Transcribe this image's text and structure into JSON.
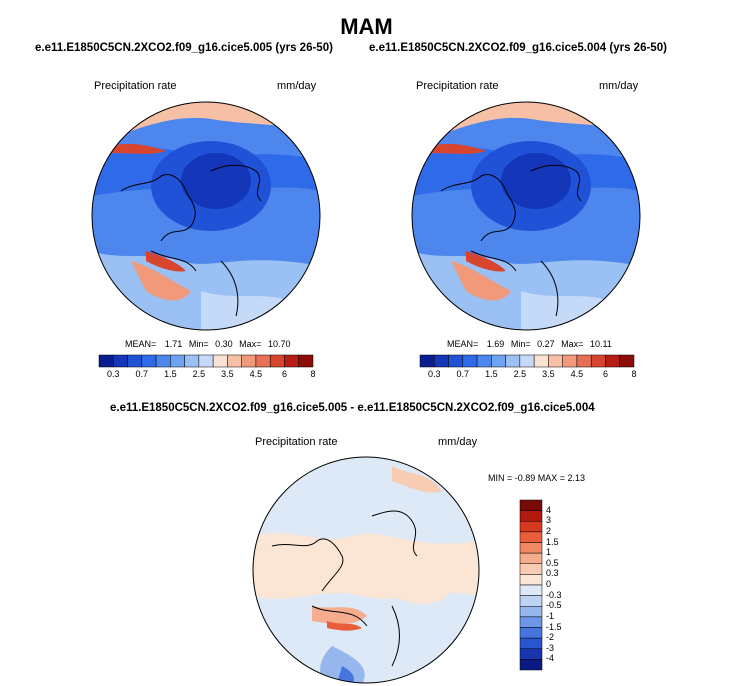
{
  "title": "MAM",
  "panels": [
    {
      "subtitle": "e.e11.E1850C5CN.2XCO2.f09_g16.cice5.005 (yrs 26-50)",
      "field_label": "Precipitation rate",
      "units": "mm/day",
      "stats": {
        "mean_label": "MEAN=",
        "mean": "1.71",
        "min_label": "Min=",
        "min": "0.30",
        "max_label": "Max=",
        "max": "10.70"
      }
    },
    {
      "subtitle": "e.e11.E1850C5CN.2XCO2.f09_g16.cice5.004 (yrs 26-50)",
      "field_label": "Precipitation rate",
      "units": "mm/day",
      "stats": {
        "mean_label": "MEAN=",
        "mean": "1.69",
        "min_label": "Min=",
        "min": "0.27",
        "max_label": "Max=",
        "max": "10.11"
      }
    }
  ],
  "colorbar": {
    "colors": [
      "#0b1d8e",
      "#1436b8",
      "#1f52d6",
      "#2f6ae8",
      "#4d87ee",
      "#6fa3f1",
      "#9ac0f4",
      "#c5daf8",
      "#fbe3d4",
      "#f6c0a6",
      "#f0997b",
      "#e66f54",
      "#d8452f",
      "#b81d15",
      "#8a0d08"
    ],
    "tick_labels": [
      "0.3",
      "0.7",
      "1.5",
      "2.5",
      "3.5",
      "4.5",
      "6",
      "8"
    ]
  },
  "diff": {
    "subtitle": "e.e11.E1850C5CN.2XCO2.f09_g16.cice5.005 - e.e11.E1850C5CN.2XCO2.f09_g16.cice5.004",
    "field_label": "Precipitation rate",
    "units": "mm/day",
    "range_text": "MIN = -0.89 MAX = 2.13",
    "colorbar": {
      "colors": [
        "#7a0a05",
        "#b3190f",
        "#d8381f",
        "#ea5d3a",
        "#f28965",
        "#f5ad8e",
        "#f8ccb2",
        "#fbe6d6",
        "#dde9f7",
        "#bcd3f3",
        "#96b6ee",
        "#6d95e8",
        "#4775df",
        "#2a55d0",
        "#1836b0",
        "#0a1a85"
      ],
      "tick_labels": [
        "4",
        "3",
        "2",
        "1.5",
        "1",
        "0.5",
        "0.3",
        "0",
        "-0.3",
        "-0.5",
        "-1",
        "-1.5",
        "-2",
        "-3",
        "-4"
      ]
    }
  }
}
